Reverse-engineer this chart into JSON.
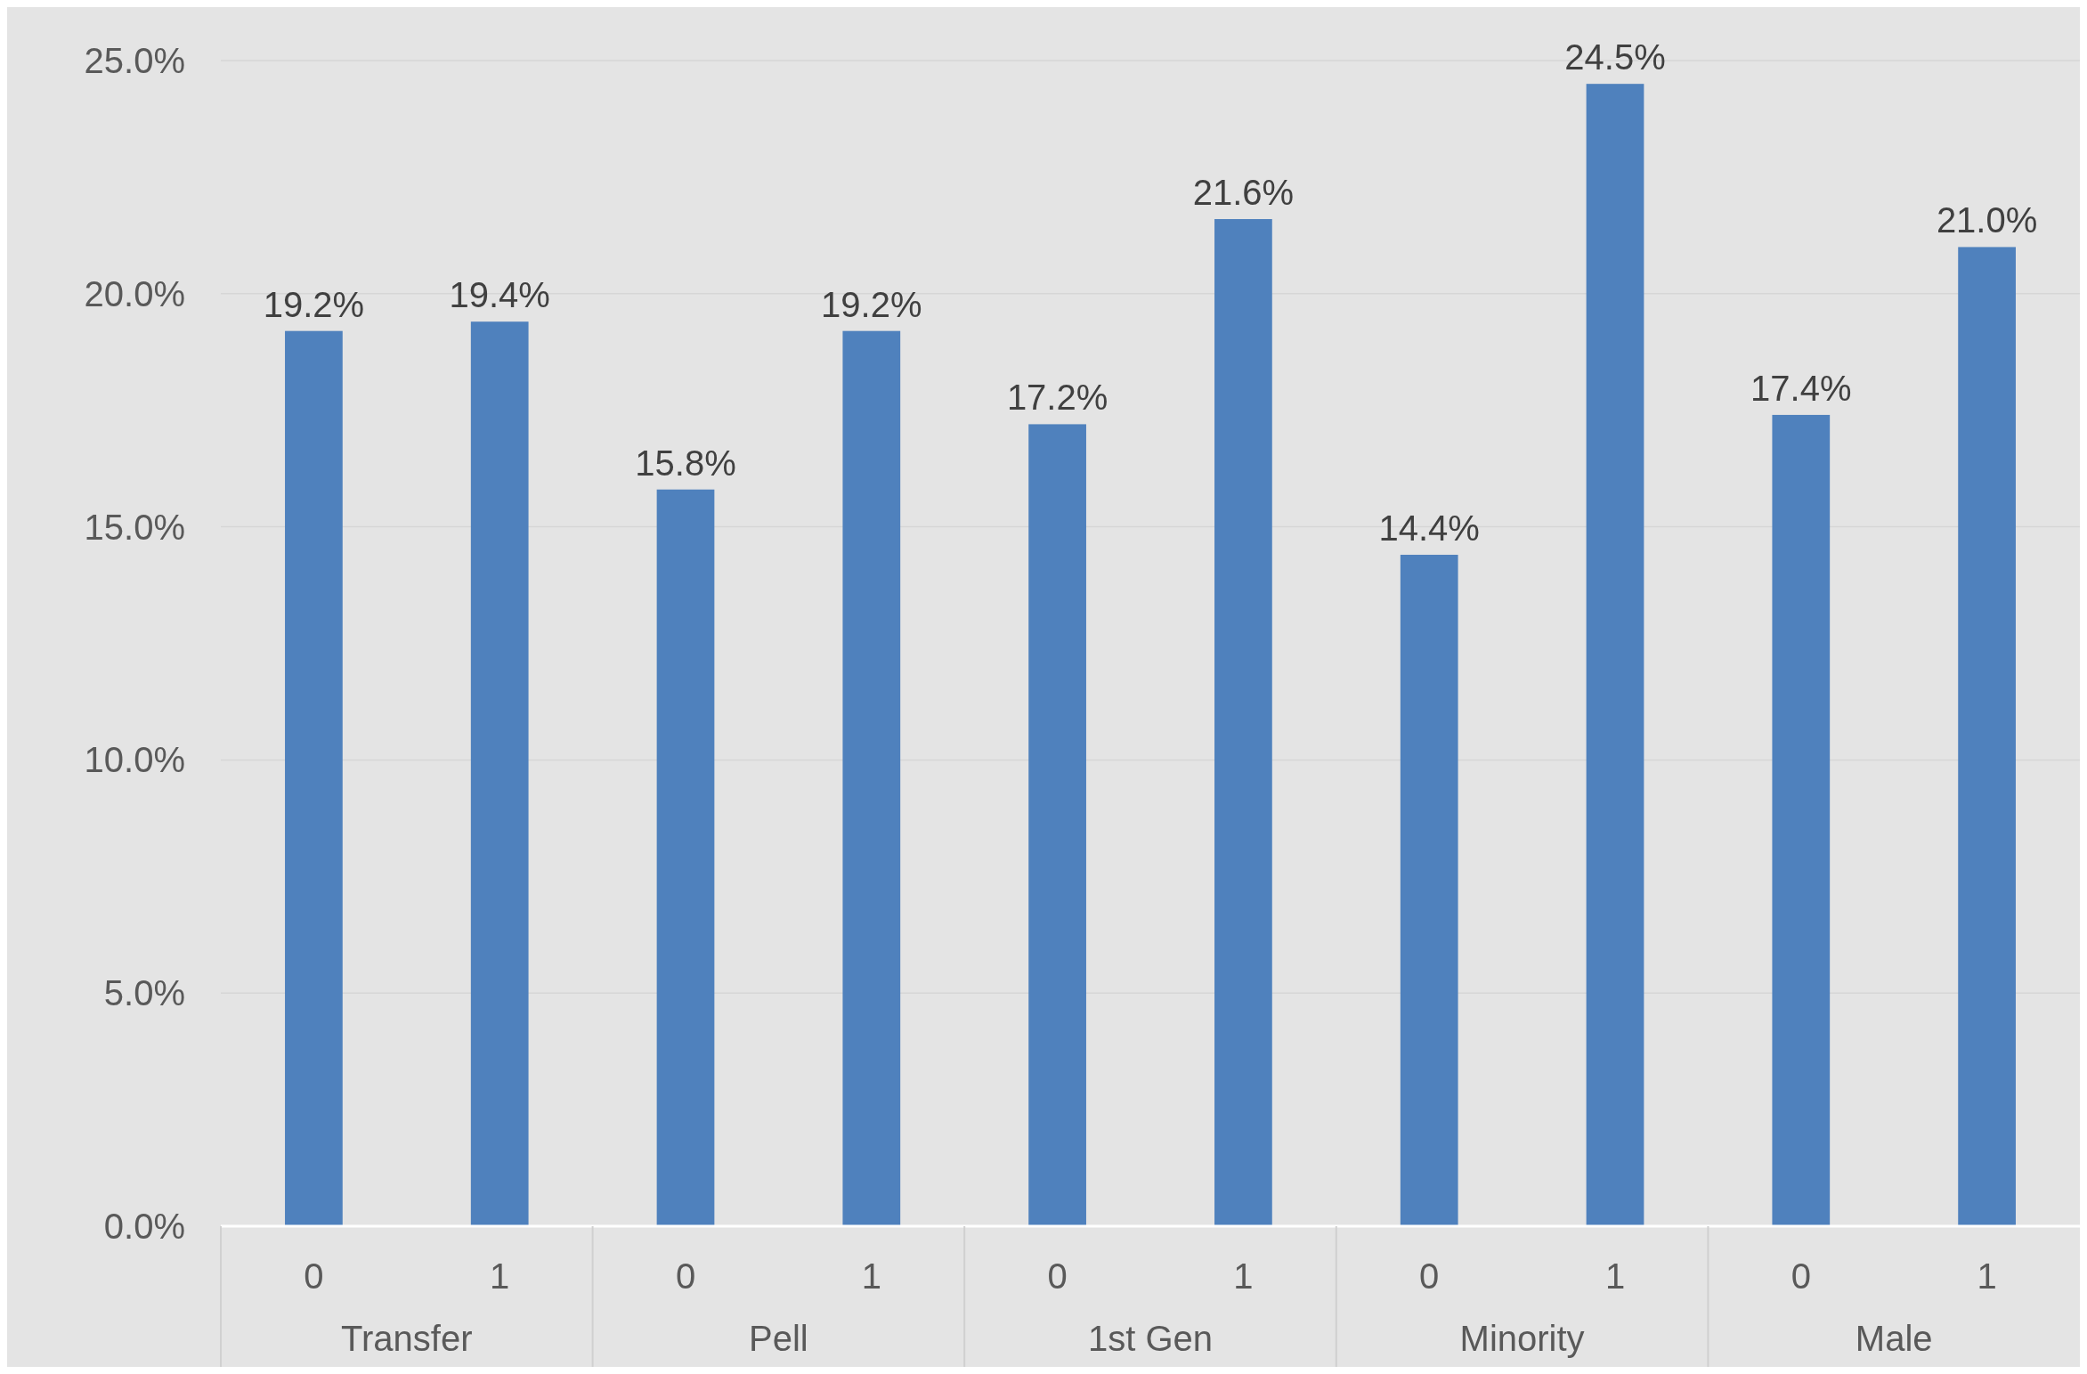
{
  "chart_data": {
    "type": "bar",
    "categories": [
      "0",
      "1",
      "0",
      "1",
      "0",
      "1",
      "0",
      "1",
      "0",
      "1"
    ],
    "values": [
      19.2,
      19.4,
      15.8,
      19.2,
      17.2,
      21.6,
      14.4,
      24.5,
      17.4,
      21.0
    ],
    "value_labels": [
      "19.2%",
      "19.4%",
      "15.8%",
      "19.2%",
      "17.2%",
      "21.6%",
      "14.4%",
      "24.5%",
      "17.4%",
      "21.0%"
    ],
    "color": "#4f81bd",
    "ylim": [
      0,
      25
    ],
    "yticks": [
      {
        "value": 0,
        "label": "0.0%"
      },
      {
        "value": 5,
        "label": "5.0%"
      },
      {
        "value": 10,
        "label": "10.0%"
      },
      {
        "value": 15,
        "label": "15.0%"
      },
      {
        "value": 20,
        "label": "20.0%"
      },
      {
        "value": 25,
        "label": "25.0%"
      }
    ],
    "grid": "y",
    "annotations": [
      "Transfer",
      "Pell",
      "1st Gen",
      "Minority",
      "Male"
    ]
  }
}
